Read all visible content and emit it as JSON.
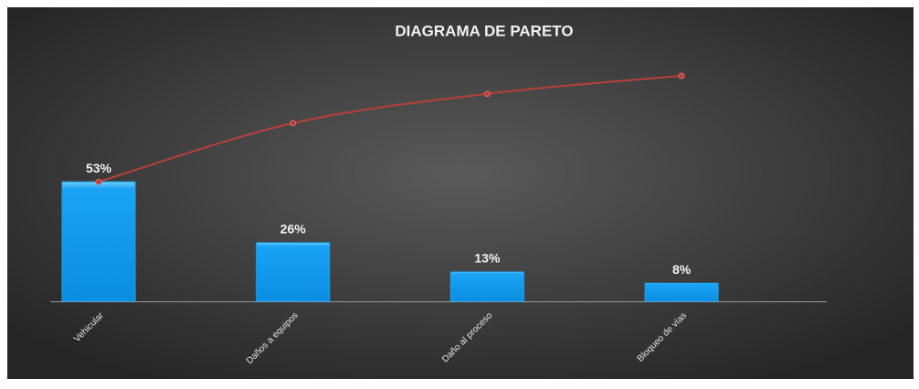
{
  "chart_data": {
    "type": "bar",
    "title": "DIAGRAMA DE PARETO",
    "categories": [
      "Vehicular",
      "Daños a equipos",
      "Daño al proceso",
      "Bloqueo de vías"
    ],
    "series": [
      {
        "type": "bar",
        "color": "#1aa3f5",
        "values": [
          53,
          26,
          13,
          8
        ],
        "value_labels": [
          "53%",
          "26%",
          "13%",
          "8%"
        ]
      },
      {
        "type": "line",
        "color": "#b8403c",
        "values": [
          53,
          79,
          92,
          100
        ]
      }
    ],
    "ylim": [
      0,
      100
    ]
  }
}
